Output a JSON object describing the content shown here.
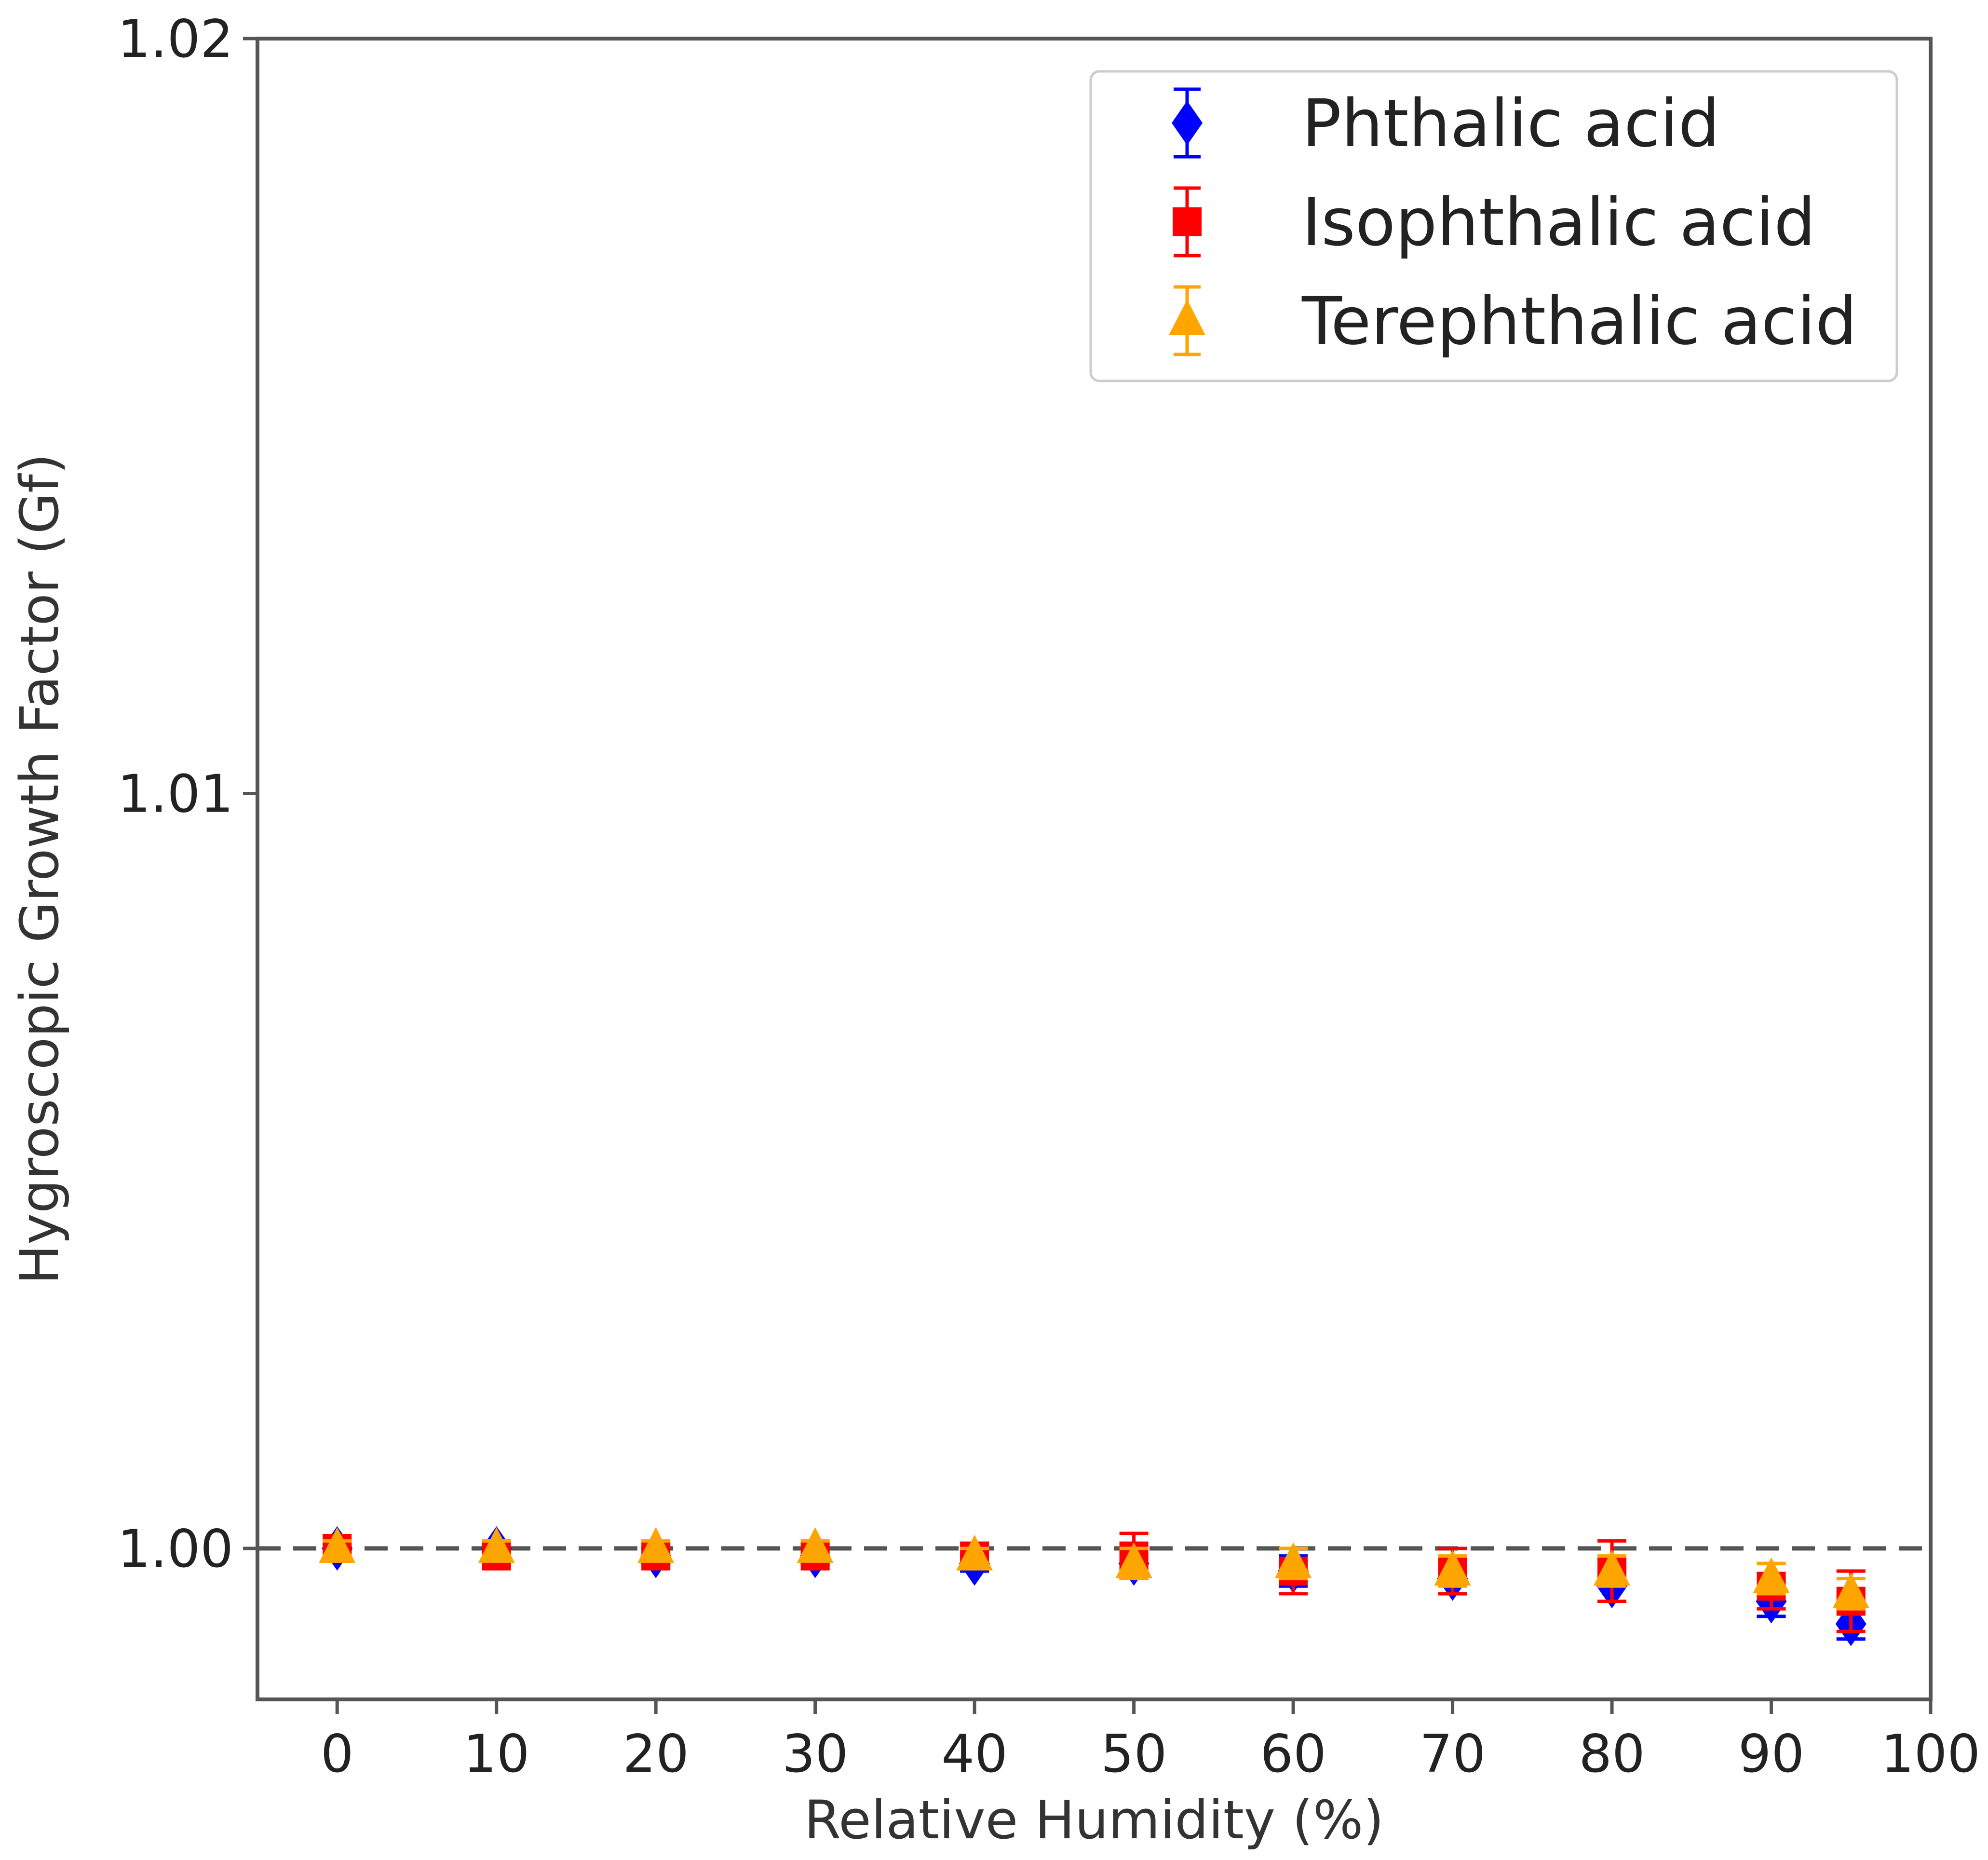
{
  "chart_data": {
    "type": "scatter",
    "xlabel": "Relative Humidity (%)",
    "ylabel": "Hygroscopic Growth Factor (Gf)",
    "xlim": [
      -5,
      100
    ],
    "ylim": [
      0.998,
      1.02
    ],
    "x_ticks": [
      0,
      10,
      20,
      30,
      40,
      50,
      60,
      70,
      80,
      90,
      100
    ],
    "x_tick_labels": [
      "0",
      "10",
      "20",
      "30",
      "40",
      "50",
      "60",
      "70",
      "80",
      "90",
      "100"
    ],
    "y_ticks": [
      1.0,
      1.01,
      1.02
    ],
    "y_tick_labels": [
      "1.00",
      "1.01",
      "1.02"
    ],
    "grid": false,
    "legend": "top-right",
    "reference_line": {
      "y": 1.0,
      "style": "dashed",
      "color": "#555555"
    },
    "series": [
      {
        "name": "Phthalic acid",
        "color": "#0000ff",
        "marker": "diamond",
        "x": [
          0,
          10,
          20,
          30,
          40,
          50,
          60,
          70,
          80,
          90,
          95
        ],
        "y": [
          1.0,
          1.0,
          0.9999,
          0.9999,
          0.9998,
          0.9998,
          0.9997,
          0.9996,
          0.9995,
          0.9993,
          0.999
        ],
        "err": [
          0.0001,
          0.0001,
          0.0001,
          0.0001,
          0.0001,
          0.0002,
          0.0002,
          0.0002,
          0.0002,
          0.0002,
          0.0002
        ]
      },
      {
        "name": "Isophthalic acid",
        "color": "#ff0000",
        "marker": "square",
        "x": [
          0,
          10,
          20,
          30,
          40,
          50,
          60,
          70,
          80,
          90,
          95
        ],
        "y": [
          1.0,
          0.9999,
          0.9999,
          0.9999,
          0.9999,
          0.9999,
          0.9997,
          0.9997,
          0.9997,
          0.9995,
          0.9993
        ],
        "err": [
          0.0001,
          0.0001,
          0.0001,
          0.0001,
          0.0001,
          0.0003,
          0.0003,
          0.0003,
          0.0004,
          0.0003,
          0.0004
        ]
      },
      {
        "name": "Terephthalic acid",
        "color": "#ffa500",
        "marker": "triangle",
        "x": [
          0,
          10,
          20,
          30,
          40,
          50,
          60,
          70,
          80,
          90,
          95
        ],
        "y": [
          1.0,
          1.0,
          1.0,
          1.0,
          0.9999,
          0.9998,
          0.9998,
          0.9997,
          0.9997,
          0.9996,
          0.9994
        ],
        "err": [
          0.0001,
          0.0001,
          0.0001,
          0.0001,
          0.0001,
          0.0002,
          0.0002,
          0.0002,
          0.0002,
          0.0002,
          0.0002
        ]
      }
    ]
  }
}
